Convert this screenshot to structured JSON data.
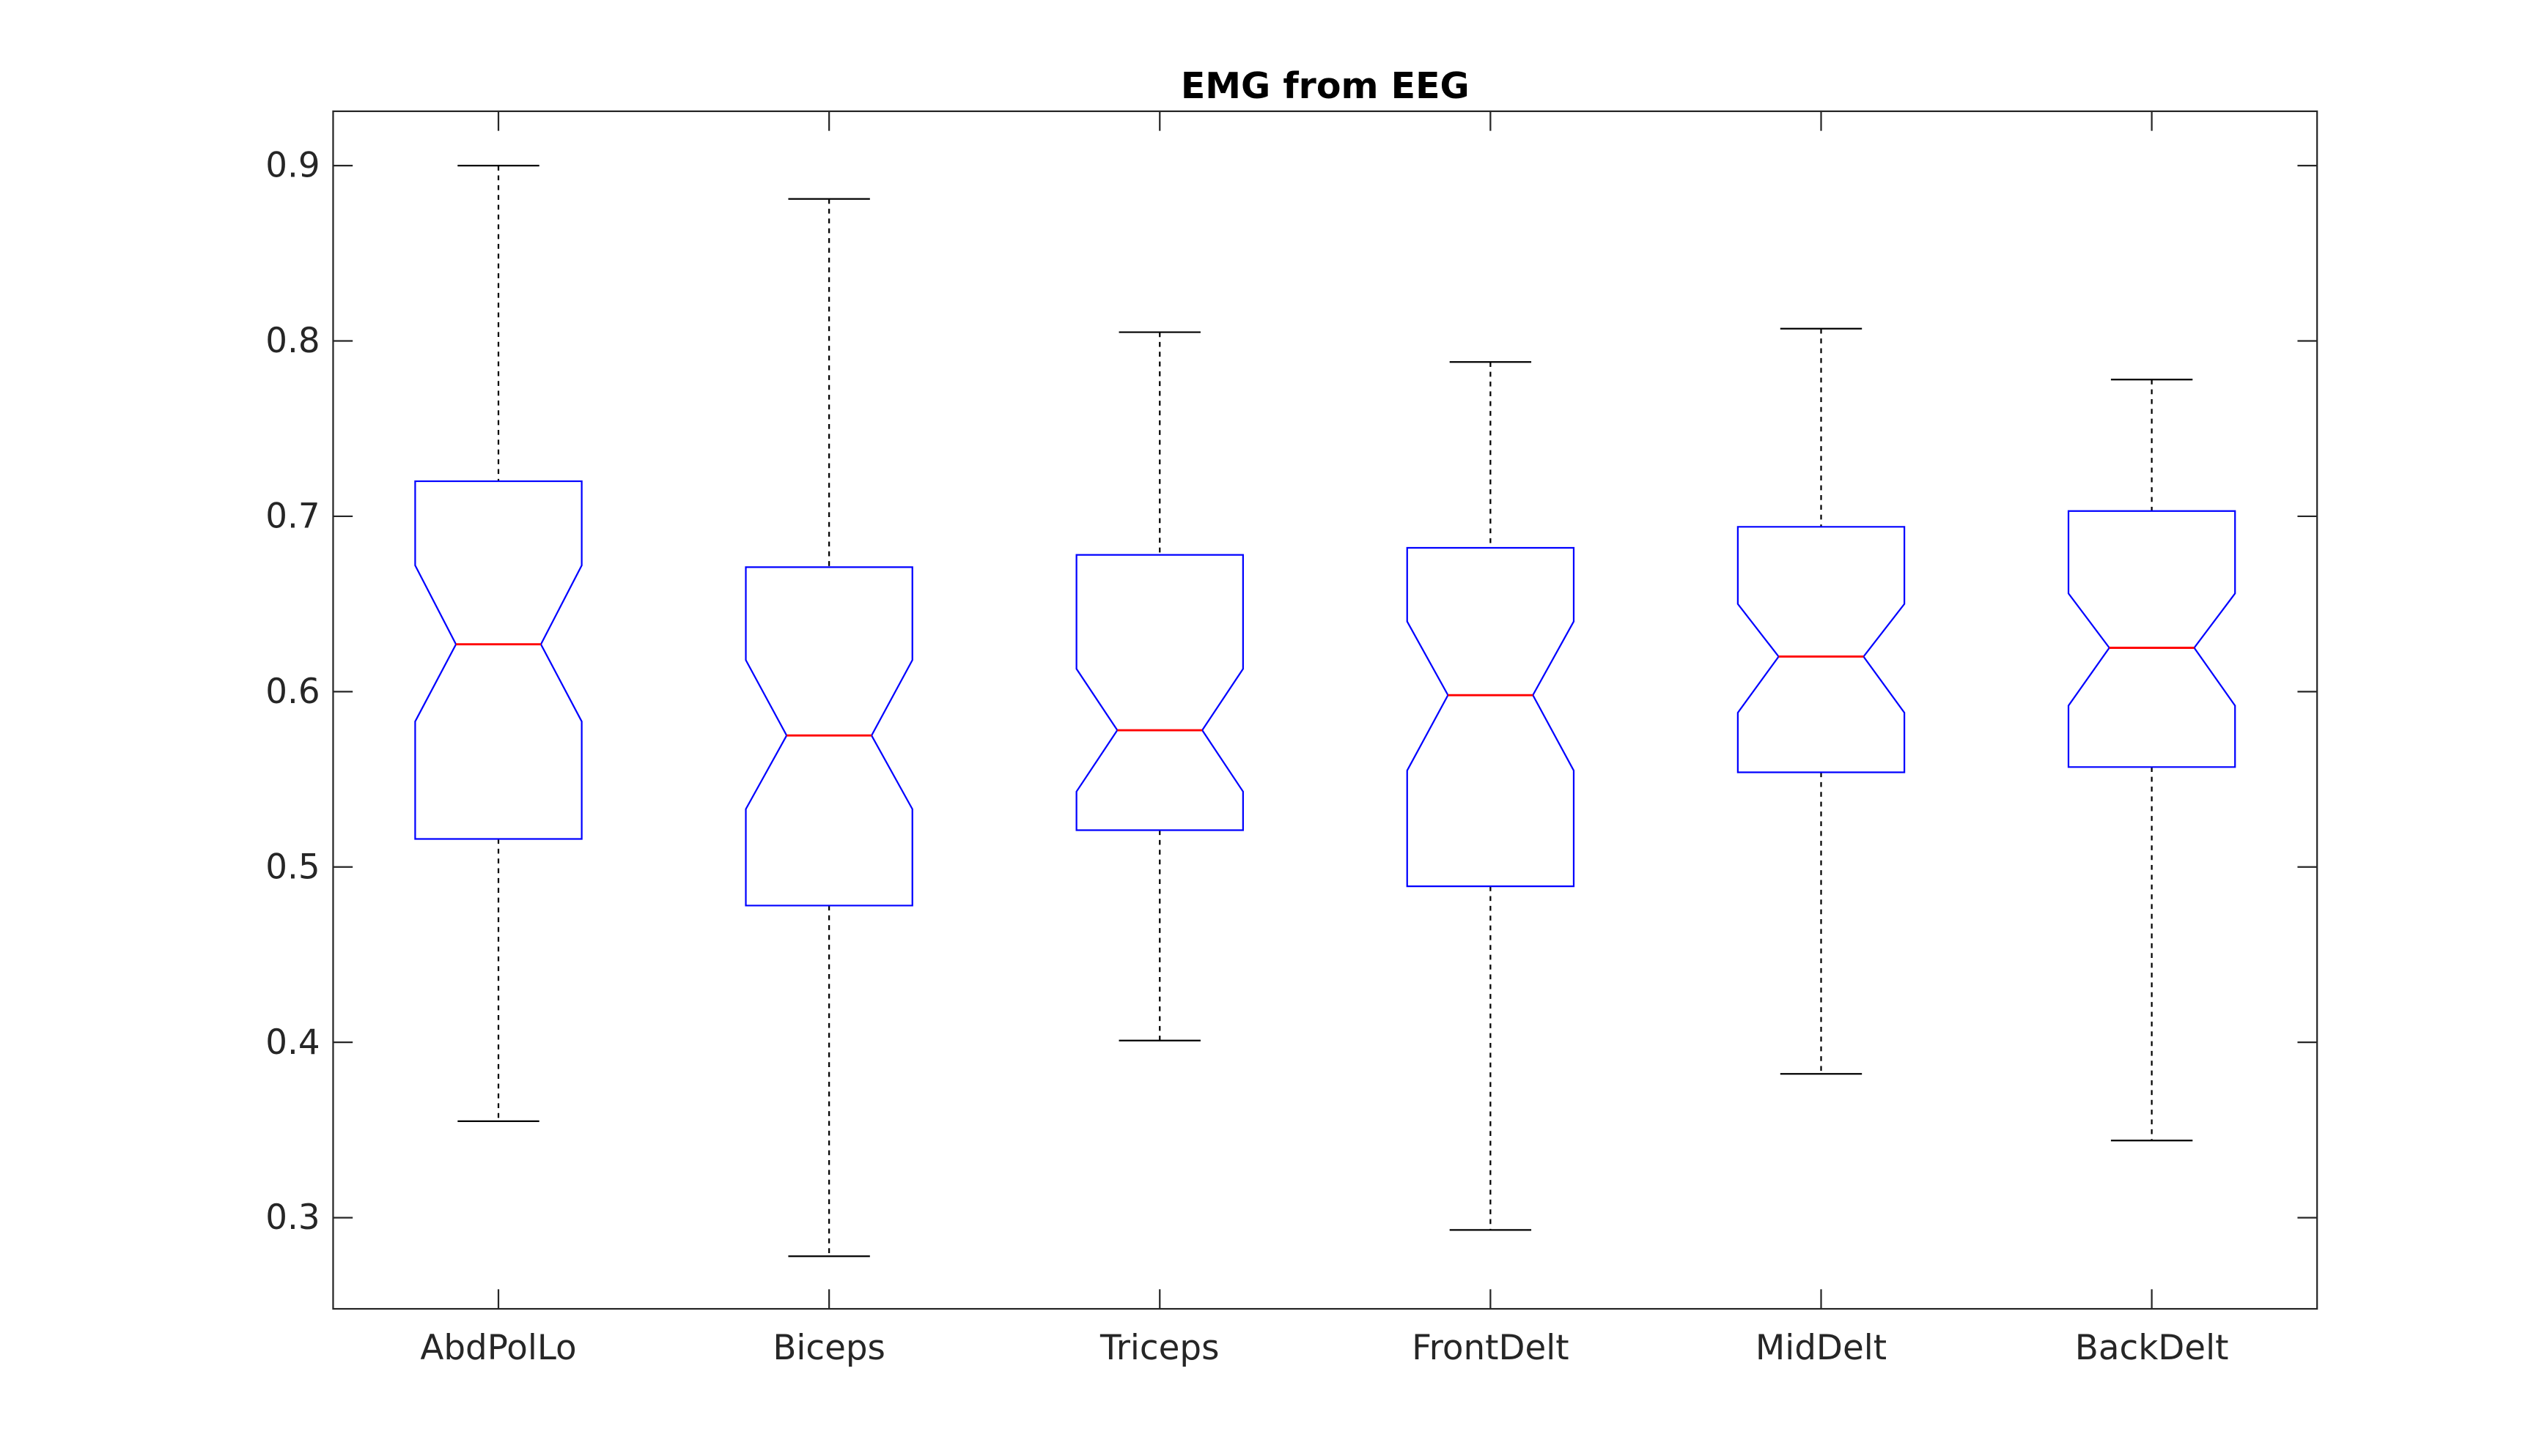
{
  "chart_data": {
    "type": "boxplot",
    "title": "EMG from EEG",
    "xlabel": "",
    "ylabel": "",
    "ylim": [
      0.248,
      0.931
    ],
    "yticks": [
      0.3,
      0.4,
      0.5,
      0.6,
      0.7,
      0.8,
      0.9
    ],
    "ytick_labels": [
      "0.3",
      "0.4",
      "0.5",
      "0.6",
      "0.7",
      "0.8",
      "0.9"
    ],
    "notched": true,
    "grid": false,
    "colors": {
      "box": "#0000ff",
      "median": "#ff0000",
      "whisker": "#000000",
      "axis": "#262626"
    },
    "categories": [
      "AbdPolLo",
      "Biceps",
      "Triceps",
      "FrontDelt",
      "MidDelt",
      "BackDelt"
    ],
    "boxes": [
      {
        "lower_whisker": 0.355,
        "q1": 0.516,
        "median": 0.627,
        "q3": 0.72,
        "upper_whisker": 0.9,
        "notch_low": 0.583,
        "notch_high": 0.672
      },
      {
        "lower_whisker": 0.278,
        "q1": 0.478,
        "median": 0.575,
        "q3": 0.671,
        "upper_whisker": 0.881,
        "notch_low": 0.533,
        "notch_high": 0.618
      },
      {
        "lower_whisker": 0.401,
        "q1": 0.521,
        "median": 0.578,
        "q3": 0.678,
        "upper_whisker": 0.805,
        "notch_low": 0.543,
        "notch_high": 0.613
      },
      {
        "lower_whisker": 0.293,
        "q1": 0.489,
        "median": 0.598,
        "q3": 0.682,
        "upper_whisker": 0.788,
        "notch_low": 0.555,
        "notch_high": 0.64
      },
      {
        "lower_whisker": 0.382,
        "q1": 0.554,
        "median": 0.62,
        "q3": 0.694,
        "upper_whisker": 0.807,
        "notch_low": 0.588,
        "notch_high": 0.65
      },
      {
        "lower_whisker": 0.344,
        "q1": 0.557,
        "median": 0.625,
        "q3": 0.703,
        "upper_whisker": 0.778,
        "notch_low": 0.592,
        "notch_high": 0.656
      }
    ]
  }
}
